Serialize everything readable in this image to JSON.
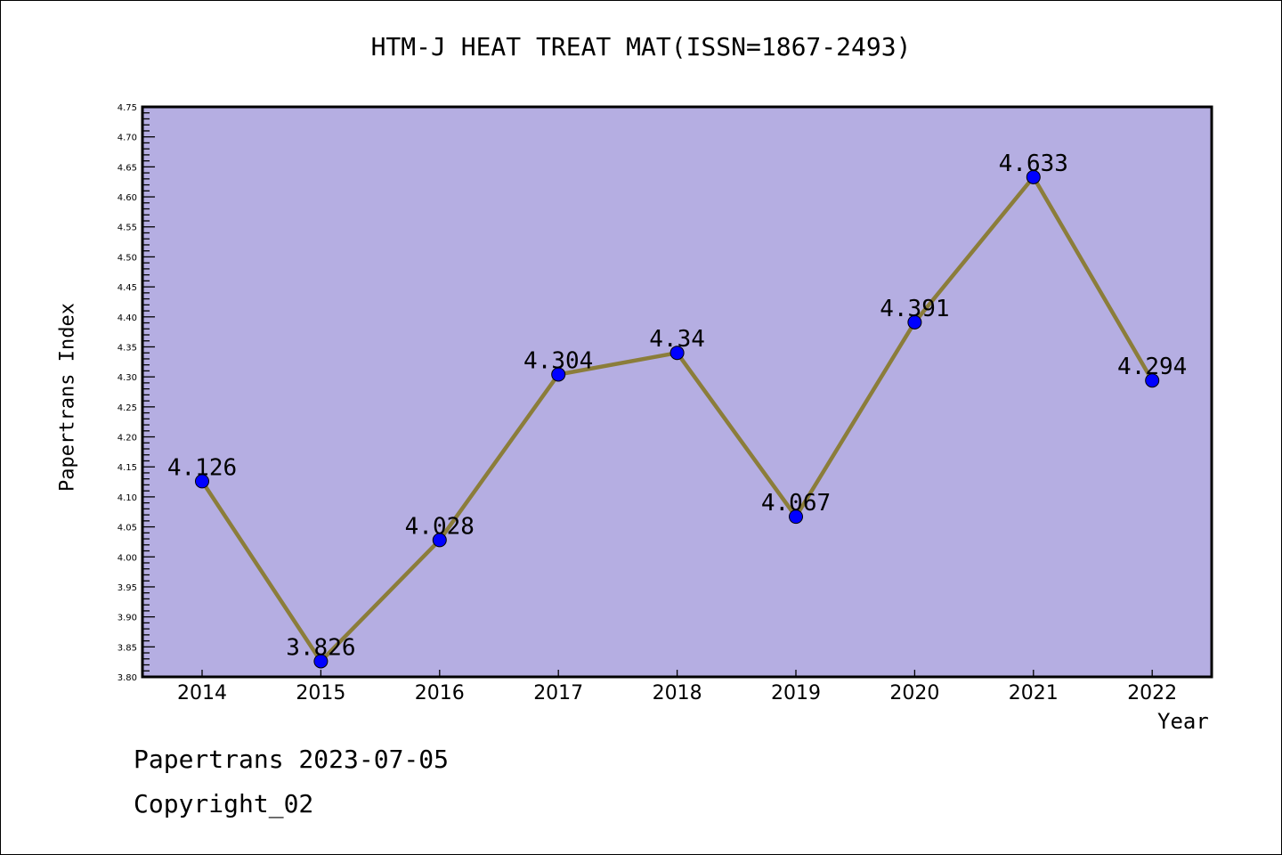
{
  "chart_data": {
    "type": "line",
    "title": "HTM-J HEAT TREAT MAT(ISSN=1867-2493)",
    "xlabel": "Year",
    "ylabel": "Papertrans Index",
    "categories": [
      "2014",
      "2015",
      "2016",
      "2017",
      "2018",
      "2019",
      "2020",
      "2021",
      "2022"
    ],
    "values": [
      4.126,
      3.826,
      4.028,
      4.304,
      4.34,
      4.067,
      4.391,
      4.633,
      4.294
    ],
    "data_labels": [
      "4.126",
      "3.826",
      "4.028",
      "4.304",
      "4.34",
      "4.067",
      "4.391",
      "4.633",
      "4.294"
    ],
    "ylim": [
      3.8,
      4.75
    ],
    "yticks": [
      "3.80",
      "3.85",
      "3.90",
      "3.95",
      "4.00",
      "4.05",
      "4.10",
      "4.15",
      "4.20",
      "4.25",
      "4.30",
      "4.35",
      "4.40",
      "4.45",
      "4.50",
      "4.55",
      "4.60",
      "4.65",
      "4.70",
      "4.75"
    ],
    "grid": false,
    "colors": {
      "background": "#b5aee2",
      "line": "#8b7d3a",
      "marker": "#0000ff"
    }
  },
  "footer": {
    "line1": "Papertrans 2023-07-05",
    "line2": "Copyright_02"
  }
}
